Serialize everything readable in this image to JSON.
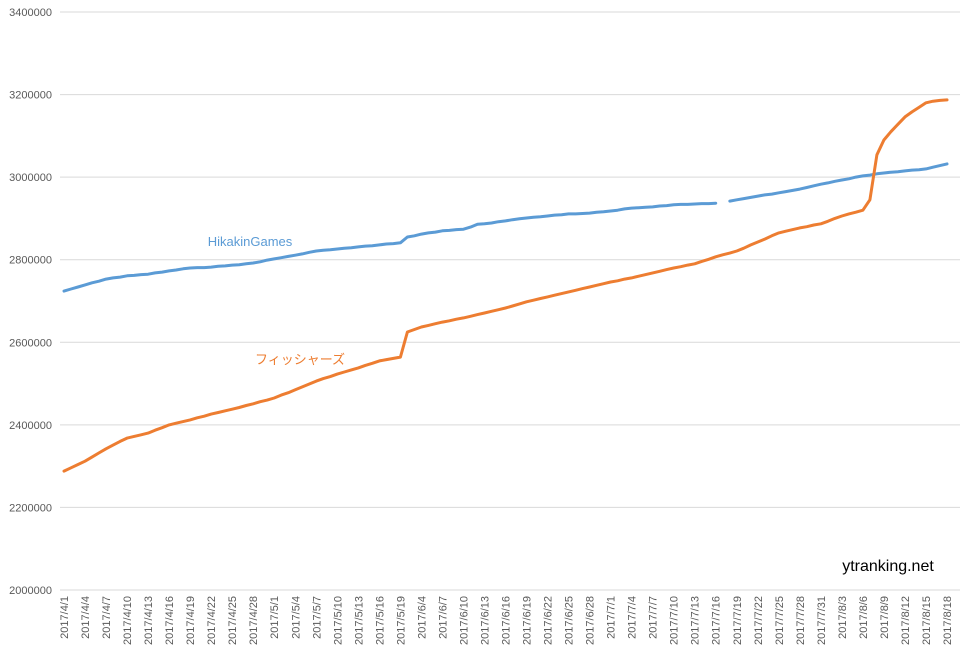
{
  "chart_data": {
    "type": "line",
    "categories": [
      "2017/4/1",
      null,
      null,
      "2017/4/4",
      null,
      null,
      "2017/4/7",
      null,
      null,
      "2017/4/10",
      null,
      null,
      "2017/4/13",
      null,
      null,
      "2017/4/16",
      null,
      null,
      "2017/4/19",
      null,
      null,
      "2017/4/22",
      null,
      null,
      "2017/4/25",
      null,
      null,
      "2017/4/28",
      null,
      null,
      "2017/5/1",
      null,
      null,
      "2017/5/4",
      null,
      null,
      "2017/5/7",
      null,
      null,
      "2017/5/10",
      null,
      null,
      "2017/5/13",
      null,
      null,
      "2017/5/16",
      null,
      null,
      "2017/5/19",
      null,
      null,
      "2017/6/4",
      null,
      null,
      "2017/6/7",
      null,
      null,
      "2017/6/10",
      null,
      null,
      "2017/6/13",
      null,
      null,
      "2017/6/16",
      null,
      null,
      "2017/6/19",
      null,
      null,
      "2017/6/22",
      null,
      null,
      "2017/6/25",
      null,
      null,
      "2017/6/28",
      null,
      null,
      "2017/7/1",
      null,
      null,
      "2017/7/4",
      null,
      null,
      "2017/7/7",
      null,
      null,
      "2017/7/10",
      null,
      null,
      "2017/7/13",
      null,
      null,
      "2017/7/16",
      null,
      null,
      "2017/7/19",
      null,
      null,
      "2017/7/22",
      null,
      null,
      "2017/7/25",
      null,
      null,
      "2017/7/28",
      null,
      null,
      "2017/7/31",
      null,
      null,
      "2017/8/3",
      null,
      null,
      "2017/8/6",
      null,
      null,
      "2017/8/9",
      null,
      null,
      "2017/8/12",
      null,
      null,
      "2017/8/15",
      null,
      null,
      "2017/8/18"
    ],
    "series": [
      {
        "name": "HikakinGames",
        "color": "#5b9bd5",
        "values": [
          2724000,
          2729000,
          2734000,
          2739000,
          2744000,
          2748000,
          2753000,
          2756000,
          2758000,
          2761000,
          2762000,
          2764000,
          2765000,
          2768000,
          2770000,
          2773000,
          2775000,
          2778000,
          2780000,
          2781000,
          2781000,
          2782000,
          2784000,
          2785000,
          2787000,
          2788000,
          2790000,
          2792000,
          2795000,
          2799000,
          2802000,
          2805000,
          2808000,
          2811000,
          2814000,
          2818000,
          2821000,
          2823000,
          2824000,
          2826000,
          2828000,
          2829000,
          2831000,
          2833000,
          2834000,
          2836000,
          2838000,
          2839000,
          2841000,
          2855000,
          2858000,
          2862000,
          2865000,
          2867000,
          2870000,
          2871000,
          2873000,
          2874000,
          2879000,
          2886000,
          2887000,
          2889000,
          2892000,
          2894000,
          2897000,
          2899000,
          2901000,
          2903000,
          2904000,
          2906000,
          2908000,
          2909000,
          2911000,
          2911000,
          2912000,
          2913000,
          2915000,
          2916000,
          2918000,
          2920000,
          2923000,
          2925000,
          2926000,
          2927000,
          2928000,
          2930000,
          2931000,
          2933000,
          2934000,
          2934000,
          2935000,
          2936000,
          2936000,
          2937000,
          null,
          2942000,
          2945000,
          2948000,
          2951000,
          2954000,
          2957000,
          2959000,
          2962000,
          2965000,
          2968000,
          2971000,
          2975000,
          2979000,
          2983000,
          2986000,
          2990000,
          2993000,
          2996000,
          3000000,
          3003000,
          3005000,
          3008000,
          3010000,
          3012000,
          3013000,
          3015000,
          3017000,
          3018000,
          3020000,
          3024000,
          3028000,
          3032000
        ]
      },
      {
        "name": "フィッシャーズ",
        "color": "#ed7d31",
        "values": [
          2288000,
          2296000,
          2304000,
          2312000,
          2322000,
          2332000,
          2342000,
          2351000,
          2360000,
          2368000,
          2372000,
          2376000,
          2380000,
          2387000,
          2393000,
          2400000,
          2404000,
          2408000,
          2412000,
          2417000,
          2421000,
          2426000,
          2430000,
          2434000,
          2438000,
          2442000,
          2447000,
          2451000,
          2456000,
          2460000,
          2465000,
          2472000,
          2478000,
          2485000,
          2492000,
          2499000,
          2506000,
          2512000,
          2517000,
          2523000,
          2528000,
          2533000,
          2538000,
          2544000,
          2549000,
          2555000,
          2558000,
          2561000,
          2564000,
          2625000,
          2631000,
          2637000,
          2641000,
          2645000,
          2649000,
          2652000,
          2656000,
          2659000,
          2663000,
          2667000,
          2671000,
          2675000,
          2679000,
          2683000,
          2688000,
          2693000,
          2698000,
          2702000,
          2706000,
          2710000,
          2714000,
          2718000,
          2722000,
          2726000,
          2730000,
          2734000,
          2738000,
          2742000,
          2746000,
          2749000,
          2753000,
          2756000,
          2760000,
          2764000,
          2768000,
          2772000,
          2776000,
          2780000,
          2783000,
          2787000,
          2790000,
          2796000,
          2801000,
          2807000,
          2812000,
          2816000,
          2821000,
          2828000,
          2836000,
          2843000,
          2850000,
          2858000,
          2865000,
          2869000,
          2873000,
          2877000,
          2880000,
          2884000,
          2887000,
          2893000,
          2900000,
          2906000,
          2911000,
          2915000,
          2920000,
          2945000,
          3054000,
          3090000,
          3110000,
          3128000,
          3146000,
          3158000,
          3169000,
          3180000,
          3184000,
          3186000,
          3187000
        ]
      }
    ],
    "ylim": [
      2000000,
      3400000
    ],
    "yticks": [
      2000000,
      2200000,
      2400000,
      2600000,
      2800000,
      3000000,
      3200000,
      3400000
    ],
    "grid": true,
    "watermark": "ytranking.net"
  }
}
